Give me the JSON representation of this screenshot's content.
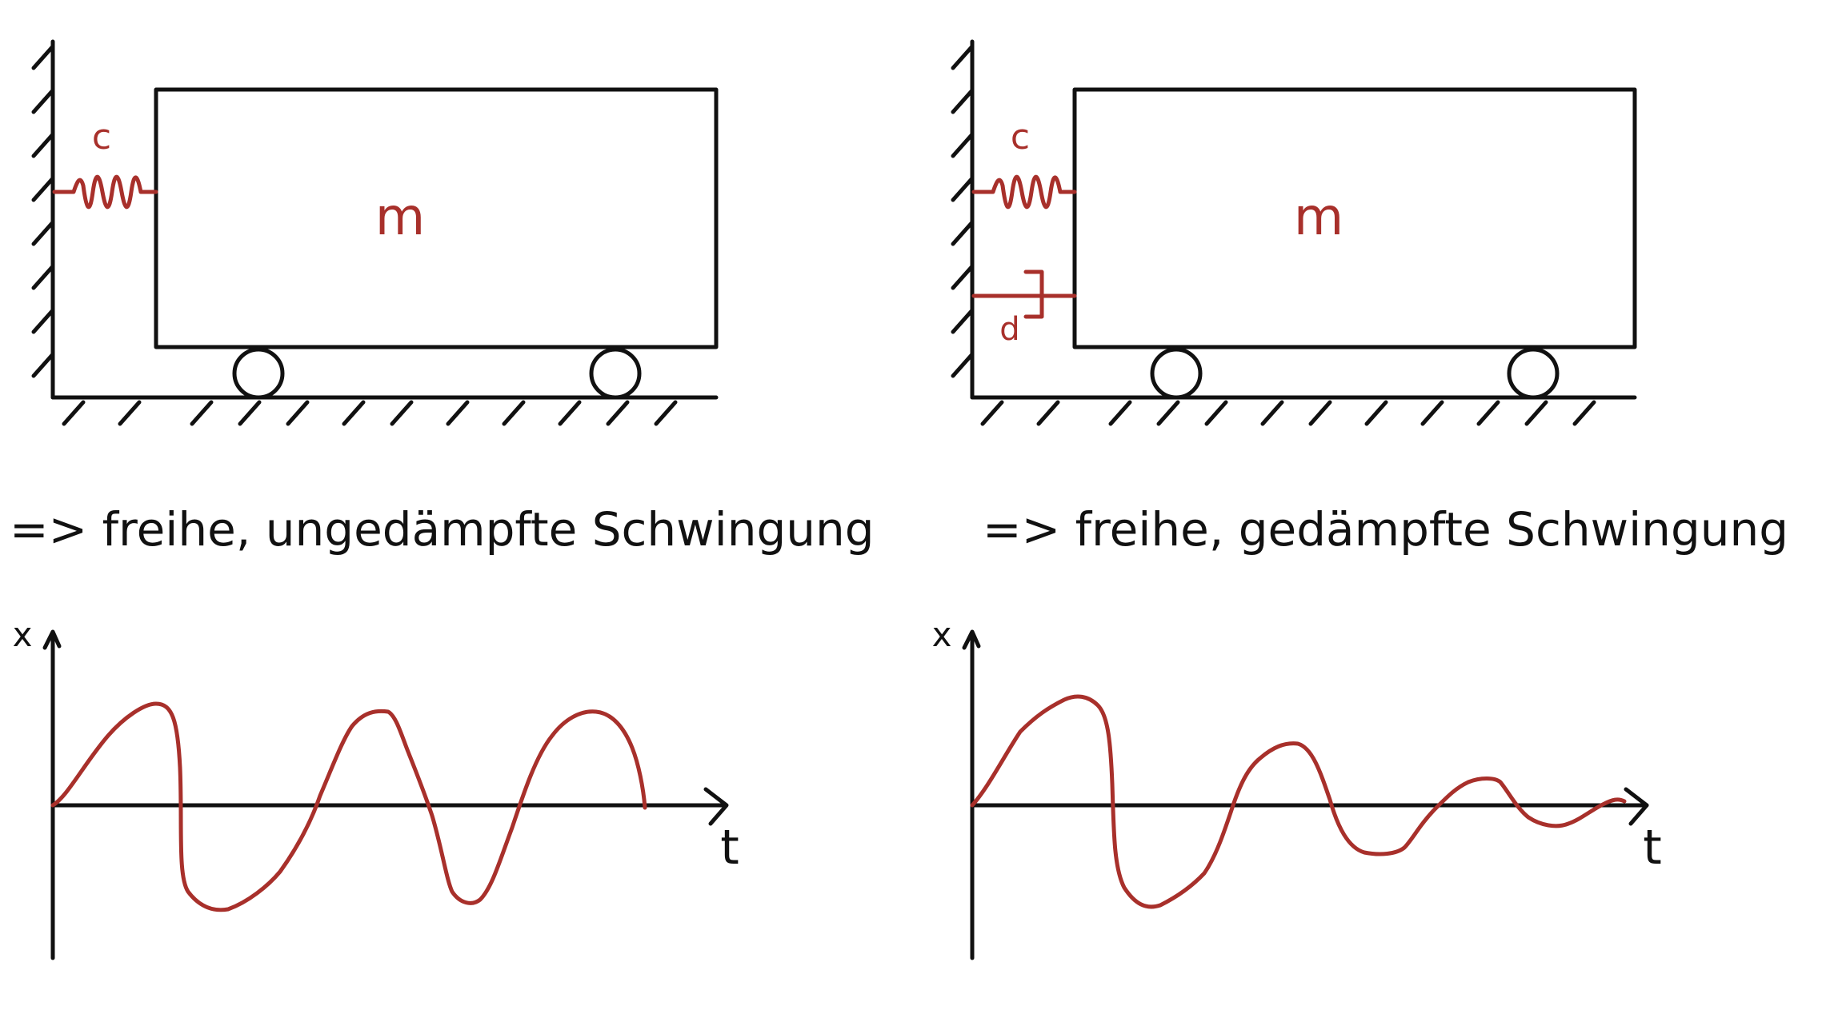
{
  "left_panel": {
    "spring_label": "c",
    "mass_label": "m",
    "caption": "=> freihe, ungedämpfte Schwingung",
    "y_axis_label": "x",
    "x_axis_label": "t"
  },
  "right_panel": {
    "spring_label": "c",
    "damper_label": "d",
    "mass_label": "m",
    "caption": "=> freihe, gedämpfte Schwingung",
    "y_axis_label": "x",
    "x_axis_label": "t"
  },
  "colors": {
    "ink": "#111111",
    "accent": "#a8302b",
    "background": "#ffffff"
  }
}
